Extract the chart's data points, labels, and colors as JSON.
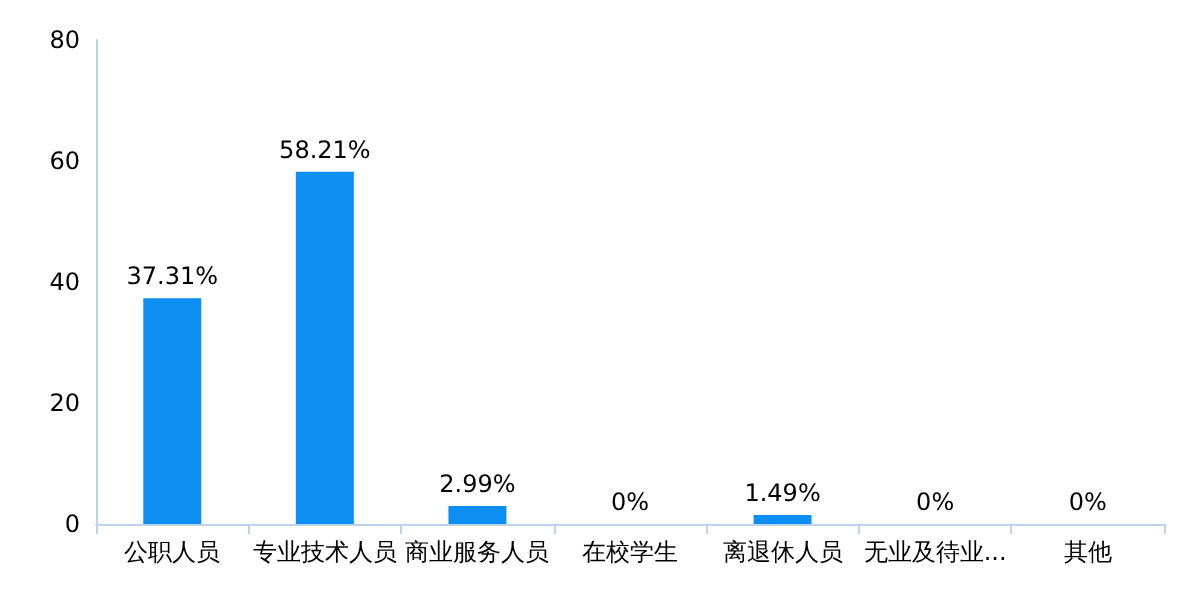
{
  "chart_data": {
    "type": "bar",
    "categories": [
      "公职人员",
      "专业技术人员",
      "商业服务人员",
      "在校学生",
      "离退休人员",
      "无业及待业...",
      "其他"
    ],
    "values": [
      37.31,
      58.21,
      2.99,
      0,
      1.49,
      0,
      0
    ],
    "value_labels": [
      "37.31%",
      "58.21%",
      "2.99%",
      "0%",
      "1.49%",
      "0%",
      "0%"
    ],
    "color": "#0d8ef2",
    "ylim": [
      0,
      80
    ],
    "yticks": [
      0,
      20,
      40,
      60,
      80
    ],
    "grid": false
  }
}
